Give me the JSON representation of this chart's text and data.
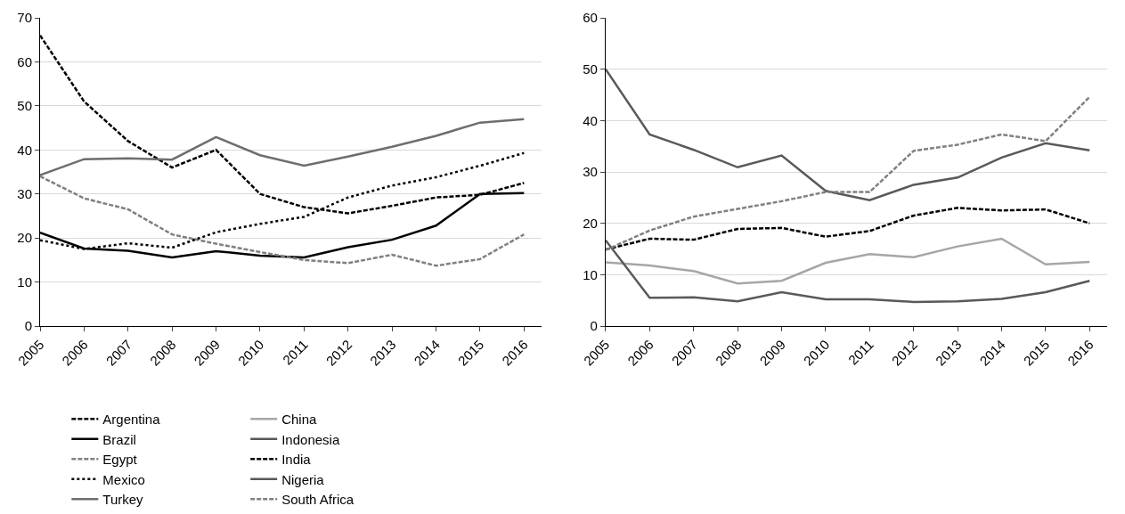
{
  "chart_data": [
    {
      "type": "line",
      "categories": [
        "2005",
        "2006",
        "2007",
        "2008",
        "2009",
        "2010",
        "2011",
        "2012",
        "2013",
        "2014",
        "2015",
        "2016"
      ],
      "ylim": [
        0,
        70
      ],
      "yticks": [
        0,
        10,
        20,
        30,
        40,
        50,
        60,
        70
      ],
      "grid": "y",
      "legend": "bottom",
      "series": [
        {
          "name": "Argentina",
          "color": "#000000",
          "line_style": "dashed",
          "values": [
            66,
            51,
            42,
            36,
            40,
            30,
            27,
            25.6,
            27.3,
            29.2,
            29.8,
            32.5
          ]
        },
        {
          "name": "Brazil",
          "color": "#000000",
          "line_style": "solid",
          "values": [
            21.2,
            17.6,
            17.1,
            15.6,
            17,
            16,
            15.6,
            17.9,
            19.6,
            22.8,
            30,
            30.2
          ]
        },
        {
          "name": "Egypt",
          "color": "#808080",
          "line_style": "dashed",
          "values": [
            34,
            29,
            26.5,
            20.8,
            18.7,
            16.8,
            15,
            14.3,
            16.2,
            13.7,
            15.2,
            20.8
          ]
        },
        {
          "name": "Mexico",
          "color": "#000000",
          "line_style": "dotted",
          "values": [
            19.5,
            17.5,
            18.8,
            17.8,
            21.3,
            23.2,
            24.8,
            29.2,
            31.9,
            33.8,
            36.4,
            39.3
          ]
        },
        {
          "name": "Turkey",
          "color": "#6e6e6e",
          "line_style": "solid",
          "values": [
            34.3,
            37.9,
            38.1,
            37.8,
            42.9,
            38.8,
            36.4,
            38.5,
            40.7,
            43.2,
            46.2,
            47
          ]
        }
      ]
    },
    {
      "type": "line",
      "categories": [
        "2005",
        "2006",
        "2007",
        "2008",
        "2009",
        "2010",
        "2011",
        "2012",
        "2013",
        "2014",
        "2015",
        "2016"
      ],
      "ylim": [
        0,
        60
      ],
      "yticks": [
        0,
        10,
        20,
        30,
        40,
        50,
        60
      ],
      "grid": "y",
      "legend": "bottom",
      "series": [
        {
          "name": "China",
          "color": "#a6a6a6",
          "line_style": "solid",
          "values": [
            12.4,
            11.8,
            10.7,
            8.3,
            8.8,
            12.3,
            14,
            13.4,
            15.5,
            17,
            12,
            12.5
          ]
        },
        {
          "name": "Indonesia",
          "color": "#595959",
          "line_style": "solid",
          "values": [
            50,
            37.3,
            34.3,
            30.9,
            33.2,
            26.3,
            24.5,
            27.5,
            28.9,
            32.8,
            35.6,
            34.2
          ]
        },
        {
          "name": "India",
          "color": "#000000",
          "line_style": "dashed",
          "values": [
            14.9,
            17,
            16.8,
            18.9,
            19.1,
            17.4,
            18.5,
            21.5,
            23,
            22.5,
            22.7,
            20
          ]
        },
        {
          "name": "Nigeria",
          "color": "#595959",
          "line_style": "solid",
          "values": [
            16.7,
            5.5,
            5.6,
            4.8,
            6.6,
            5.2,
            5.2,
            4.7,
            4.8,
            5.3,
            6.6,
            8.8
          ]
        },
        {
          "name": "South Africa",
          "color": "#808080",
          "line_style": "dashed",
          "values": [
            14.8,
            18.6,
            21.3,
            22.8,
            24.3,
            26.1,
            26.1,
            34.1,
            35.3,
            37.3,
            36,
            44.6
          ]
        }
      ]
    }
  ]
}
